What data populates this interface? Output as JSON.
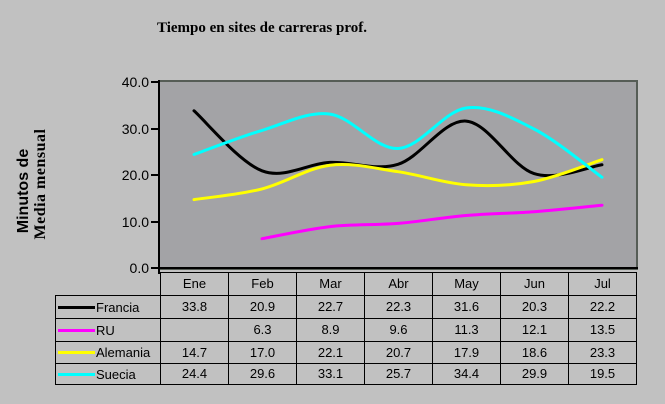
{
  "chart_data": {
    "type": "line",
    "line_style": "smooth",
    "title": "Tiempo en sites de carreras prof.",
    "ylabel_lines": [
      "Minutos de",
      "Media mensual"
    ],
    "xlabel": "",
    "categories": [
      "Ene",
      "Feb",
      "Mar",
      "Abr",
      "May",
      "Jun",
      "Jul"
    ],
    "series": [
      {
        "name": "Francia",
        "color": "#000000",
        "values": [
          33.8,
          20.9,
          22.7,
          22.3,
          31.6,
          20.3,
          22.2
        ]
      },
      {
        "name": "RU",
        "color": "#ff00ff",
        "values": [
          null,
          6.3,
          8.9,
          9.6,
          11.3,
          12.1,
          13.5
        ]
      },
      {
        "name": "Alemania",
        "color": "#ffff00",
        "values": [
          14.7,
          17.0,
          22.1,
          20.7,
          17.9,
          18.6,
          23.3
        ]
      },
      {
        "name": "Suecia",
        "color": "#00ffff",
        "values": [
          24.4,
          29.6,
          33.1,
          25.7,
          34.4,
          29.9,
          19.5
        ]
      }
    ],
    "ylim": [
      0,
      40
    ],
    "ytick_labels": [
      "40.0",
      "30.0",
      "20.0",
      "10.0",
      "0.0"
    ],
    "grid": false,
    "legend_position": "table-left-column",
    "value_decimals": 1
  },
  "colors": {
    "chart_background": "#c1c1c1",
    "plot_background": "#a3a3a6",
    "plot_border": "#565d56",
    "axis": "#000000",
    "table_border": "#000000",
    "text": "#000000"
  }
}
